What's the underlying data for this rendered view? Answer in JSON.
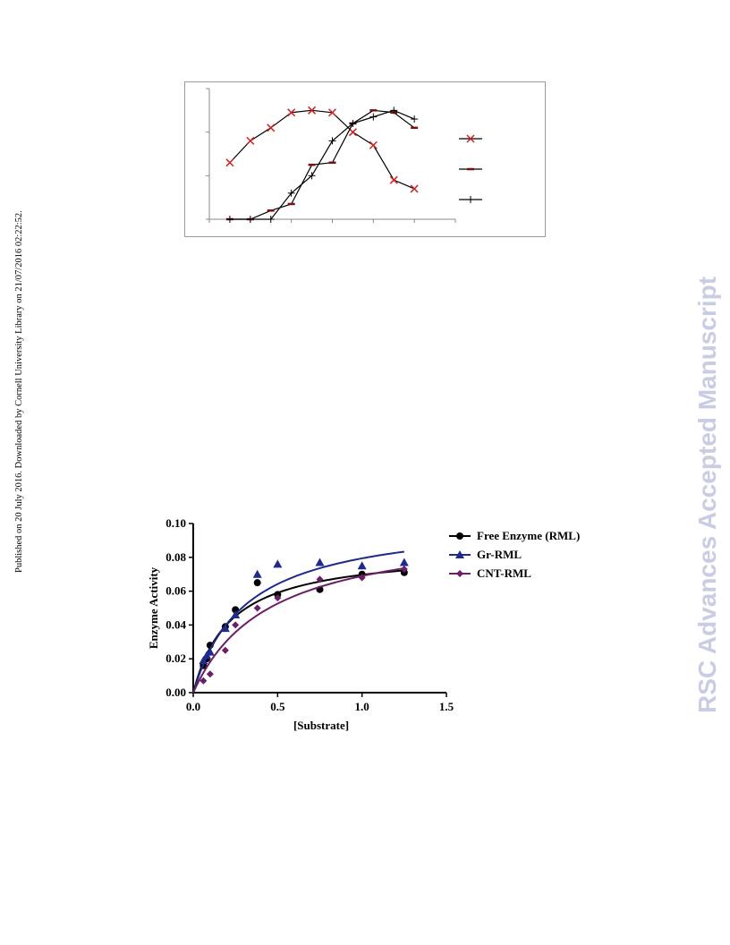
{
  "side_note": "Published on 20 July 2016. Downloaded by Cornell University Library on 21/07/2016 02:22:52.",
  "watermark": "RSC Advances Accepted Manuscript",
  "watermark_color": "#c9cde3",
  "chart_data": [
    {
      "type": "line",
      "title": "",
      "xlabel": "",
      "ylabel": "",
      "tick_labels_visible": false,
      "grid": false,
      "x": [
        1,
        2,
        3,
        4,
        5,
        6,
        7,
        8,
        9,
        10
      ],
      "ylim": [
        0,
        3
      ],
      "series": [
        {
          "marker": "x",
          "color": "#cc2222",
          "values": [
            1.3,
            1.8,
            2.1,
            2.45,
            2.5,
            2.45,
            2.0,
            1.7,
            0.9,
            0.7
          ]
        },
        {
          "marker": "dash",
          "color": "#7a1010",
          "values": [
            0,
            0,
            0.2,
            0.35,
            1.25,
            1.3,
            2.2,
            2.5,
            2.45,
            2.1
          ]
        },
        {
          "marker": "plus",
          "color": "#000000",
          "values": [
            0,
            0,
            0,
            0.6,
            1.0,
            1.8,
            2.2,
            2.35,
            2.5,
            2.3
          ]
        }
      ],
      "legend_position": "right"
    },
    {
      "type": "scatter",
      "xlabel": "[Substrate]",
      "ylabel": "Enzyme Activity",
      "xlim": [
        0,
        1.5
      ],
      "ylim": [
        0,
        0.1
      ],
      "x_ticks": [
        "0.0",
        "0.5",
        "1.0",
        "1.5"
      ],
      "y_ticks": [
        "0.00",
        "0.02",
        "0.04",
        "0.06",
        "0.08",
        "0.10"
      ],
      "legend_position": "top-right",
      "series": [
        {
          "name": "Free Enzyme (RML)",
          "marker": "circle",
          "color": "#000000",
          "points": [
            [
              0.06,
              0.016
            ],
            [
              0.08,
              0.02
            ],
            [
              0.1,
              0.028
            ],
            [
              0.19,
              0.039
            ],
            [
              0.25,
              0.049
            ],
            [
              0.38,
              0.065
            ],
            [
              0.5,
              0.058
            ],
            [
              0.75,
              0.061
            ],
            [
              1.0,
              0.07
            ],
            [
              1.25,
              0.071
            ]
          ],
          "fit": {
            "vmax": 0.085,
            "km": 0.22
          }
        },
        {
          "name": "Gr-RML",
          "marker": "triangle",
          "color": "#1f2a8a",
          "points": [
            [
              0.06,
              0.019
            ],
            [
              0.08,
              0.022
            ],
            [
              0.1,
              0.024
            ],
            [
              0.19,
              0.038
            ],
            [
              0.25,
              0.046
            ],
            [
              0.38,
              0.07
            ],
            [
              0.5,
              0.076
            ],
            [
              0.75,
              0.077
            ],
            [
              1.0,
              0.075
            ],
            [
              1.25,
              0.077
            ]
          ],
          "fit": {
            "vmax": 0.104,
            "km": 0.31
          }
        },
        {
          "name": "CNT-RML",
          "marker": "diamond",
          "color": "#6b1f66",
          "points": [
            [
              0.06,
              0.007
            ],
            [
              0.1,
              0.011
            ],
            [
              0.19,
              0.025
            ],
            [
              0.25,
              0.04
            ],
            [
              0.38,
              0.05
            ],
            [
              0.5,
              0.056
            ],
            [
              0.75,
              0.067
            ],
            [
              1.0,
              0.068
            ],
            [
              1.25,
              0.073
            ]
          ],
          "fit": {
            "vmax": 0.1,
            "km": 0.45
          }
        }
      ]
    }
  ]
}
